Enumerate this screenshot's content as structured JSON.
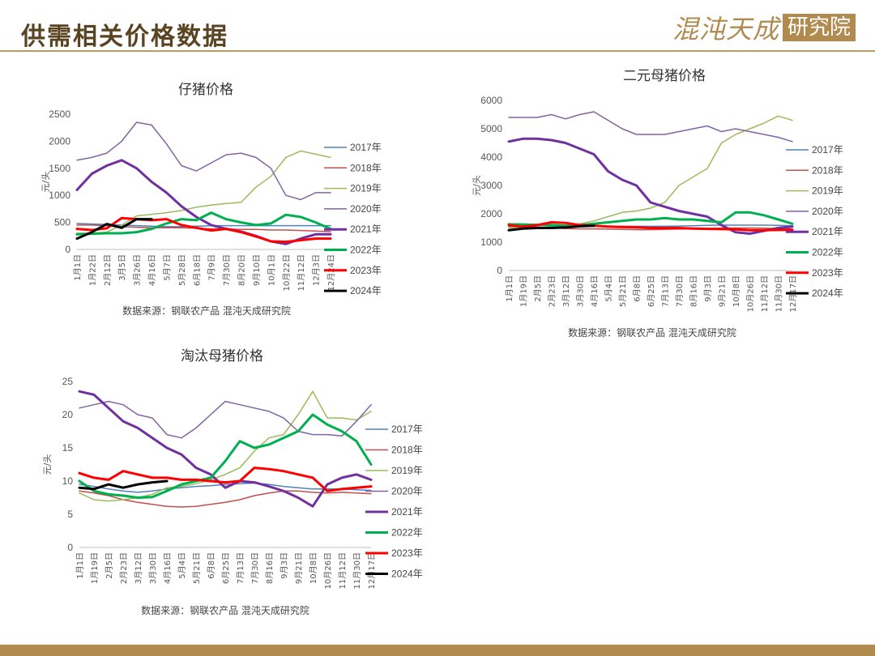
{
  "header": {
    "title": "供需相关价格数据",
    "brand_main": "混沌天成",
    "brand_box": "研究院"
  },
  "chart_data": [
    {
      "id": "piglet",
      "type": "line",
      "title": "仔猪价格",
      "ylabel": "元/头",
      "ylim": [
        0,
        2500
      ],
      "yticks": [
        0,
        500,
        1000,
        1500,
        2000,
        2500
      ],
      "grid": false,
      "legend_position": "right",
      "source": "数据来源：钢联农产品 混沌天成研究院",
      "x_labels": [
        "1月1日",
        "1月22日",
        "2月12日",
        "3月5日",
        "3月26日",
        "4月16日",
        "5月7日",
        "5月28日",
        "6月18日",
        "7月9日",
        "7月30日",
        "8月20日",
        "9月10日",
        "10月1日",
        "10月22日",
        "11月12日",
        "12月3日",
        "12月24日"
      ],
      "series": [
        {
          "name": "2017年",
          "color": "#4f81bd",
          "width": 1.5,
          "values": [
            480,
            470,
            460,
            450,
            440,
            430,
            420,
            420,
            430,
            440,
            440,
            440,
            440,
            440,
            440,
            440,
            440,
            440
          ]
        },
        {
          "name": "2018年",
          "color": "#c0504d",
          "width": 1.5,
          "values": [
            450,
            450,
            440,
            420,
            410,
            400,
            400,
            400,
            390,
            380,
            380,
            370,
            370,
            360,
            360,
            350,
            340,
            330
          ]
        },
        {
          "name": "2019年",
          "color": "#9bbb59",
          "width": 1.5,
          "values": [
            300,
            300,
            320,
            450,
            620,
            650,
            680,
            720,
            780,
            820,
            850,
            870,
            1150,
            1350,
            1700,
            1820,
            1760,
            1700
          ]
        },
        {
          "name": "2020年",
          "color": "#8064a2",
          "width": 1.5,
          "values": [
            1650,
            1700,
            1780,
            2000,
            2350,
            2300,
            1950,
            1550,
            1450,
            1600,
            1750,
            1780,
            1700,
            1500,
            1000,
            920,
            1050,
            1050
          ]
        },
        {
          "name": "2021年",
          "color": "#7030a0",
          "width": 3,
          "values": [
            1100,
            1400,
            1550,
            1650,
            1500,
            1250,
            1050,
            800,
            600,
            450,
            380,
            330,
            250,
            150,
            100,
            200,
            280,
            280
          ]
        },
        {
          "name": "2022年",
          "color": "#00b050",
          "width": 3,
          "values": [
            280,
            290,
            300,
            300,
            320,
            380,
            480,
            560,
            540,
            680,
            560,
            500,
            450,
            480,
            640,
            600,
            500,
            380
          ]
        },
        {
          "name": "2023年",
          "color": "#ff0000",
          "width": 3,
          "values": [
            380,
            360,
            390,
            580,
            560,
            540,
            560,
            450,
            400,
            350,
            380,
            320,
            240,
            150,
            140,
            170,
            200,
            200
          ]
        },
        {
          "name": "2024年",
          "color": "#000000",
          "width": 3,
          "values": [
            200,
            320,
            470,
            400,
            560,
            560
          ]
        }
      ]
    },
    {
      "id": "sow-binary",
      "type": "line",
      "title": "二元母猪价格",
      "ylabel": "元/头",
      "ylim": [
        0,
        6000
      ],
      "yticks": [
        0,
        1000,
        2000,
        3000,
        4000,
        5000,
        6000
      ],
      "grid": false,
      "legend_position": "right",
      "source": "数据来源：钢联农产品 混沌天成研究院",
      "x_labels": [
        "1月1日",
        "1月19日",
        "2月5日",
        "2月23日",
        "3月12日",
        "3月30日",
        "4月16日",
        "5月4日",
        "5月21日",
        "6月8日",
        "6月25日",
        "7月13日",
        "7月30日",
        "8月16日",
        "9月3日",
        "9月21日",
        "10月8日",
        "10月26日",
        "11月12日",
        "11月30日",
        "12月17日"
      ],
      "series": [
        {
          "name": "2017年",
          "color": "#4f81bd",
          "width": 1.5,
          "values": [
            1650,
            1640,
            1630,
            1620,
            1600,
            1590,
            1580,
            1570,
            1560,
            1560,
            1560,
            1560,
            1570,
            1580,
            1590,
            1600,
            1600,
            1600,
            1600,
            1590,
            1580
          ]
        },
        {
          "name": "2018年",
          "color": "#c0504d",
          "width": 1.5,
          "values": [
            1550,
            1540,
            1530,
            1500,
            1480,
            1470,
            1470,
            1460,
            1450,
            1440,
            1440,
            1450,
            1460,
            1470,
            1480,
            1490,
            1500,
            1500,
            1490,
            1480,
            1470
          ]
        },
        {
          "name": "2019年",
          "color": "#9bbb59",
          "width": 1.5,
          "values": [
            1500,
            1500,
            1500,
            1550,
            1600,
            1650,
            1750,
            1900,
            2050,
            2100,
            2200,
            2400,
            3000,
            3300,
            3600,
            4500,
            4800,
            5000,
            5200,
            5450,
            5300
          ]
        },
        {
          "name": "2020年",
          "color": "#8064a2",
          "width": 1.5,
          "values": [
            5400,
            5400,
            5400,
            5500,
            5350,
            5500,
            5600,
            5300,
            5000,
            4800,
            4800,
            4800,
            4900,
            5000,
            5100,
            4900,
            5000,
            4900,
            4800,
            4700,
            4550
          ]
        },
        {
          "name": "2021年",
          "color": "#7030a0",
          "width": 3,
          "values": [
            4550,
            4650,
            4650,
            4600,
            4500,
            4300,
            4100,
            3500,
            3200,
            3000,
            2400,
            2250,
            2100,
            2000,
            1900,
            1600,
            1350,
            1300,
            1400,
            1500,
            1550
          ]
        },
        {
          "name": "2022年",
          "color": "#00b050",
          "width": 3,
          "values": [
            1630,
            1620,
            1610,
            1600,
            1580,
            1600,
            1650,
            1700,
            1750,
            1800,
            1800,
            1850,
            1800,
            1800,
            1750,
            1700,
            2050,
            2050,
            1950,
            1800,
            1650
          ]
        },
        {
          "name": "2023年",
          "color": "#ff0000",
          "width": 3,
          "values": [
            1600,
            1550,
            1600,
            1700,
            1680,
            1600,
            1580,
            1550,
            1530,
            1520,
            1500,
            1500,
            1500,
            1480,
            1470,
            1460,
            1450,
            1420,
            1420,
            1430,
            1430
          ]
        },
        {
          "name": "2024年",
          "color": "#000000",
          "width": 3,
          "values": [
            1420,
            1480,
            1500,
            1500,
            1520,
            1560,
            1580
          ]
        }
      ]
    },
    {
      "id": "cull-sow",
      "type": "line",
      "title": "淘汰母猪价格",
      "ylabel": "元/头",
      "ylim": [
        0,
        25
      ],
      "yticks": [
        0,
        5,
        10,
        15,
        20,
        25
      ],
      "grid": false,
      "legend_position": "right",
      "source": "数据来源：钢联农产品 混沌天成研究院",
      "x_labels": [
        "1月1日",
        "1月19日",
        "2月5日",
        "2月23日",
        "3月12日",
        "3月30日",
        "4月16日",
        "5月4日",
        "5月21日",
        "6月8日",
        "6月25日",
        "7月13日",
        "7月30日",
        "8月16日",
        "9月3日",
        "9月21日",
        "10月8日",
        "10月26日",
        "11月12日",
        "11月30日",
        "12月17日"
      ],
      "series": [
        {
          "name": "2017年",
          "color": "#4f81bd",
          "width": 1.5,
          "values": [
            9.5,
            9.2,
            8.8,
            8.5,
            8.3,
            8.5,
            8.8,
            9.0,
            9.2,
            9.3,
            9.5,
            9.6,
            9.7,
            9.5,
            9.2,
            9.0,
            8.8,
            8.8,
            8.8,
            8.7,
            8.6
          ]
        },
        {
          "name": "2018年",
          "color": "#c0504d",
          "width": 1.5,
          "values": [
            8.5,
            8.2,
            7.8,
            7.2,
            6.8,
            6.5,
            6.2,
            6.1,
            6.2,
            6.5,
            6.8,
            7.2,
            7.8,
            8.2,
            8.5,
            8.5,
            8.3,
            8.2,
            8.3,
            8.2,
            8.1
          ]
        },
        {
          "name": "2019年",
          "color": "#9bbb59",
          "width": 1.5,
          "values": [
            8.2,
            7.2,
            7.0,
            7.2,
            7.5,
            8.0,
            9.0,
            9.2,
            9.6,
            10.2,
            11.0,
            12.0,
            14.5,
            16.5,
            17.0,
            20.0,
            23.5,
            19.5,
            19.5,
            19.2,
            20.5
          ]
        },
        {
          "name": "2020年",
          "color": "#8064a2",
          "width": 1.5,
          "values": [
            21.0,
            21.5,
            22.0,
            21.5,
            20.0,
            19.5,
            17.0,
            16.5,
            18.0,
            20.0,
            22.0,
            21.5,
            21.0,
            20.5,
            19.5,
            17.5,
            17.0,
            17.0,
            16.8,
            19.0,
            21.5
          ]
        },
        {
          "name": "2021年",
          "color": "#7030a0",
          "width": 3,
          "values": [
            23.5,
            23.0,
            21.0,
            19.0,
            18.0,
            16.5,
            15.0,
            14.0,
            12.0,
            11.0,
            9.0,
            10.0,
            9.8,
            9.2,
            8.5,
            7.5,
            6.2,
            9.5,
            10.5,
            11.0,
            10.2
          ]
        },
        {
          "name": "2022年",
          "color": "#00b050",
          "width": 3,
          "values": [
            10.0,
            8.5,
            8.0,
            7.8,
            7.5,
            7.6,
            8.5,
            9.5,
            10.0,
            10.5,
            13.0,
            16.0,
            15.0,
            15.5,
            16.5,
            17.5,
            20.0,
            18.5,
            17.5,
            16.0,
            12.5
          ]
        },
        {
          "name": "2023年",
          "color": "#ff0000",
          "width": 3,
          "values": [
            11.2,
            10.5,
            10.2,
            11.5,
            11.0,
            10.5,
            10.5,
            10.2,
            10.2,
            10.0,
            9.8,
            10.0,
            12.0,
            11.8,
            11.5,
            11.0,
            10.5,
            8.5,
            8.8,
            9.0,
            9.2
          ]
        },
        {
          "name": "2024年",
          "color": "#000000",
          "width": 3,
          "values": [
            9.0,
            8.8,
            9.5,
            9.0,
            9.5,
            9.8,
            10.0
          ]
        }
      ]
    }
  ]
}
